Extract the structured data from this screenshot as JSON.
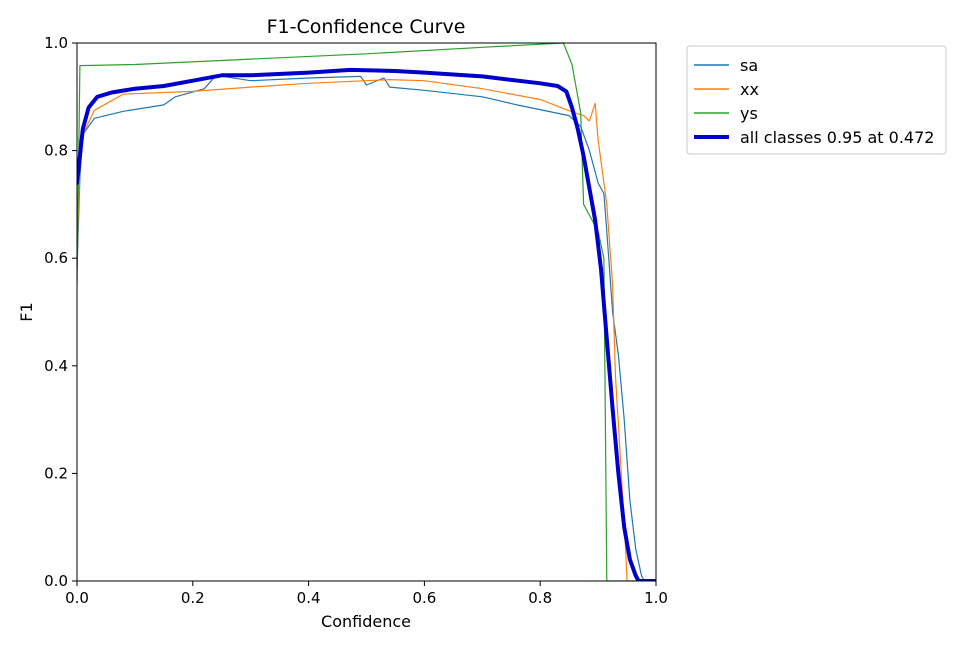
{
  "chart_data": {
    "type": "line",
    "title": "F1-Confidence Curve",
    "xlabel": "Confidence",
    "ylabel": "F1",
    "xlim": [
      0.0,
      1.0
    ],
    "ylim": [
      0.0,
      1.0
    ],
    "xticks": [
      "0.0",
      "0.2",
      "0.4",
      "0.6",
      "0.8",
      "1.0"
    ],
    "yticks": [
      "0.0",
      "0.2",
      "0.4",
      "0.6",
      "0.8",
      "1.0"
    ],
    "grid": false,
    "legend_position": "outside-top-right",
    "series": [
      {
        "name": "sa",
        "color": "#1f77b4",
        "points": [
          [
            0.0,
            0.58
          ],
          [
            0.005,
            0.75
          ],
          [
            0.01,
            0.83
          ],
          [
            0.03,
            0.86
          ],
          [
            0.08,
            0.873
          ],
          [
            0.15,
            0.885
          ],
          [
            0.17,
            0.9
          ],
          [
            0.22,
            0.915
          ],
          [
            0.24,
            0.94
          ],
          [
            0.3,
            0.93
          ],
          [
            0.4,
            0.935
          ],
          [
            0.49,
            0.938
          ],
          [
            0.5,
            0.922
          ],
          [
            0.53,
            0.935
          ],
          [
            0.54,
            0.918
          ],
          [
            0.6,
            0.912
          ],
          [
            0.7,
            0.9
          ],
          [
            0.76,
            0.885
          ],
          [
            0.85,
            0.865
          ],
          [
            0.87,
            0.845
          ],
          [
            0.885,
            0.8
          ],
          [
            0.9,
            0.74
          ],
          [
            0.91,
            0.72
          ],
          [
            0.915,
            0.65
          ],
          [
            0.925,
            0.5
          ],
          [
            0.935,
            0.42
          ],
          [
            0.945,
            0.3
          ],
          [
            0.955,
            0.15
          ],
          [
            0.965,
            0.06
          ],
          [
            0.975,
            0.01
          ],
          [
            0.98,
            0.0
          ],
          [
            1.0,
            0.0
          ]
        ]
      },
      {
        "name": "xx",
        "color": "#ff7f0e",
        "points": [
          [
            0.0,
            0.6
          ],
          [
            0.005,
            0.78
          ],
          [
            0.01,
            0.83
          ],
          [
            0.03,
            0.875
          ],
          [
            0.08,
            0.905
          ],
          [
            0.2,
            0.91
          ],
          [
            0.3,
            0.918
          ],
          [
            0.4,
            0.925
          ],
          [
            0.54,
            0.932
          ],
          [
            0.6,
            0.93
          ],
          [
            0.7,
            0.915
          ],
          [
            0.8,
            0.895
          ],
          [
            0.86,
            0.87
          ],
          [
            0.875,
            0.865
          ],
          [
            0.885,
            0.855
          ],
          [
            0.895,
            0.888
          ],
          [
            0.9,
            0.82
          ],
          [
            0.915,
            0.7
          ],
          [
            0.925,
            0.55
          ],
          [
            0.93,
            0.38
          ],
          [
            0.94,
            0.2
          ],
          [
            0.948,
            0.05
          ],
          [
            0.95,
            0.0
          ],
          [
            1.0,
            0.0
          ]
        ]
      },
      {
        "name": "ys",
        "color": "#2ca02c",
        "points": [
          [
            0.0,
            0.55
          ],
          [
            0.005,
            0.958
          ],
          [
            0.1,
            0.96
          ],
          [
            0.3,
            0.97
          ],
          [
            0.5,
            0.98
          ],
          [
            0.7,
            0.992
          ],
          [
            0.84,
            1.0
          ],
          [
            0.855,
            0.96
          ],
          [
            0.86,
            0.93
          ],
          [
            0.87,
            0.87
          ],
          [
            0.875,
            0.7
          ],
          [
            0.9,
            0.65
          ],
          [
            0.91,
            0.6
          ],
          [
            0.915,
            0.0
          ],
          [
            1.0,
            0.0
          ]
        ]
      },
      {
        "name": "all classes 0.95 at 0.472",
        "color": "#0000cc",
        "width": 4,
        "points": [
          [
            0.0,
            0.74
          ],
          [
            0.01,
            0.84
          ],
          [
            0.02,
            0.88
          ],
          [
            0.035,
            0.9
          ],
          [
            0.06,
            0.908
          ],
          [
            0.1,
            0.915
          ],
          [
            0.15,
            0.92
          ],
          [
            0.2,
            0.93
          ],
          [
            0.25,
            0.94
          ],
          [
            0.3,
            0.94
          ],
          [
            0.4,
            0.945
          ],
          [
            0.472,
            0.95
          ],
          [
            0.55,
            0.948
          ],
          [
            0.6,
            0.945
          ],
          [
            0.7,
            0.938
          ],
          [
            0.8,
            0.925
          ],
          [
            0.83,
            0.92
          ],
          [
            0.845,
            0.91
          ],
          [
            0.855,
            0.88
          ],
          [
            0.865,
            0.84
          ],
          [
            0.875,
            0.79
          ],
          [
            0.885,
            0.73
          ],
          [
            0.895,
            0.67
          ],
          [
            0.905,
            0.58
          ],
          [
            0.915,
            0.45
          ],
          [
            0.925,
            0.32
          ],
          [
            0.935,
            0.2
          ],
          [
            0.945,
            0.1
          ],
          [
            0.955,
            0.04
          ],
          [
            0.965,
            0.01
          ],
          [
            0.97,
            0.0
          ],
          [
            1.0,
            0.0
          ]
        ]
      }
    ]
  }
}
